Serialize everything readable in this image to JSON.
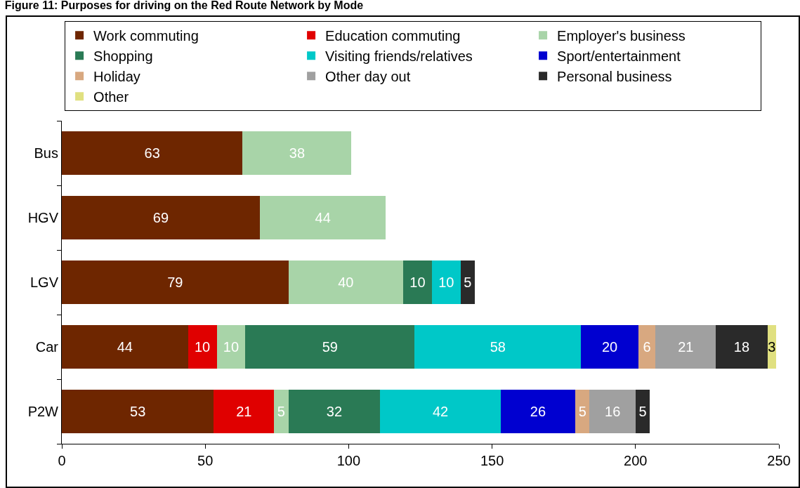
{
  "chart_data": {
    "type": "bar",
    "orientation": "horizontal",
    "stacked": true,
    "title": "Figure 11: Purposes for driving on the Red Route Network by Mode",
    "categories": [
      "Bus",
      "HGV",
      "LGV",
      "Car",
      "P2W"
    ],
    "series": [
      {
        "name": "Work commuting",
        "color": "#6e2600",
        "values": [
          63,
          69,
          79,
          44,
          53
        ]
      },
      {
        "name": "Education commuting",
        "color": "#e00000",
        "values": [
          null,
          null,
          null,
          10,
          21
        ]
      },
      {
        "name": "Employer's business",
        "color": "#a8d4a8",
        "values": [
          38,
          44,
          40,
          10,
          5
        ]
      },
      {
        "name": "Shopping",
        "color": "#2a7a55",
        "values": [
          null,
          null,
          10,
          59,
          32
        ]
      },
      {
        "name": "Visiting friends/relatives",
        "color": "#00c8c8",
        "values": [
          null,
          null,
          10,
          58,
          42
        ]
      },
      {
        "name": "Sport/entertainment",
        "color": "#0000d0",
        "values": [
          null,
          null,
          null,
          20,
          26
        ]
      },
      {
        "name": "Holiday",
        "color": "#d8a880",
        "values": [
          null,
          null,
          null,
          6,
          5
        ]
      },
      {
        "name": "Other day out",
        "color": "#a0a0a0",
        "values": [
          null,
          null,
          null,
          21,
          16
        ]
      },
      {
        "name": "Personal business",
        "color": "#2a2a2a",
        "values": [
          null,
          null,
          5,
          18,
          5
        ]
      },
      {
        "name": "Other",
        "color": "#e0e080",
        "values": [
          null,
          null,
          null,
          3,
          null
        ]
      }
    ],
    "xlim": [
      0,
      250
    ],
    "xticks": [
      0,
      50,
      100,
      150,
      200,
      250
    ],
    "data_labels": true,
    "legend": "top"
  }
}
